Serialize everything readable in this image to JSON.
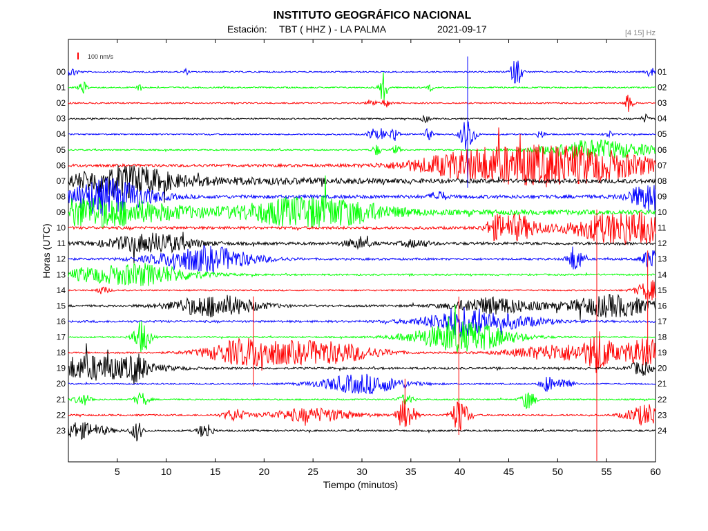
{
  "header": {
    "title": "INSTITUTO GEOGRÁFICO NACIONAL",
    "station_label": "Estación:",
    "station": "TBT ( HHZ ) - LA PALMA",
    "date": "2021-09-17",
    "filter": "[4 15] Hz"
  },
  "scale": {
    "label": "100 nm/s",
    "color": "#ff0000"
  },
  "chart_data": {
    "type": "line",
    "chart_kind": "helicorder",
    "xlabel": "Tiempo (minutos)",
    "ylabel": "Horas (UTC)",
    "xlim": [
      0,
      60
    ],
    "x_ticks": [
      5,
      10,
      15,
      20,
      25,
      30,
      35,
      40,
      45,
      50,
      55,
      60
    ],
    "grid": false,
    "legend": "none",
    "color_cycle": [
      "#0000ff",
      "#00ff00",
      "#ff0000",
      "#000000"
    ],
    "rows": [
      {
        "left": "00",
        "right": "01",
        "color": "#0000ff",
        "noise": 1.0,
        "events": [
          [
            0.5,
            6,
            0.4
          ],
          [
            12,
            4,
            0.2
          ],
          [
            45.8,
            20,
            0.4
          ],
          [
            59.5,
            8,
            0.3
          ]
        ]
      },
      {
        "left": "01",
        "right": "02",
        "color": "#00ff00",
        "noise": 1.0,
        "events": [
          [
            1.5,
            8,
            0.3
          ],
          [
            7.2,
            6,
            0.2
          ],
          [
            32.2,
            22,
            0.3
          ],
          [
            37,
            5,
            0.2
          ]
        ]
      },
      {
        "left": "02",
        "right": "03",
        "color": "#ff0000",
        "noise": 1.0,
        "events": [
          [
            31,
            7,
            0.3
          ],
          [
            32.5,
            6,
            0.3
          ],
          [
            57.2,
            12,
            0.3
          ]
        ]
      },
      {
        "left": "03",
        "right": "04",
        "color": "#000000",
        "noise": 1.0,
        "events": [
          [
            36.5,
            5,
            0.3
          ],
          [
            59,
            6,
            0.3
          ]
        ]
      },
      {
        "left": "04",
        "right": "05",
        "color": "#0000ff",
        "noise": 1.0,
        "events": [
          [
            31,
            9,
            0.3
          ],
          [
            32,
            9,
            0.3
          ],
          [
            33.3,
            12,
            0.3
          ],
          [
            36.8,
            8,
            0.3
          ],
          [
            40.8,
            24,
            0.5
          ],
          [
            48.3,
            6,
            0.3
          ],
          [
            55.2,
            5,
            0.3
          ]
        ]
      },
      {
        "left": "05",
        "right": "06",
        "color": "#00ff00",
        "noise": 1.0,
        "events": [
          [
            31.5,
            8,
            0.3
          ],
          [
            33.5,
            6,
            0.3
          ],
          [
            54,
            14,
            4.0
          ]
        ]
      },
      {
        "left": "06",
        "right": "07",
        "color": "#ff0000",
        "noise": 2.0,
        "events": [
          [
            43,
            24,
            5.0
          ],
          [
            51.5,
            22,
            4.0
          ],
          [
            57.5,
            8,
            3.0
          ]
        ]
      },
      {
        "left": "07",
        "right": "08",
        "color": "#000000",
        "noise": 3.0,
        "events": [
          [
            5.5,
            20,
            3.5
          ],
          [
            15,
            3,
            10
          ]
        ]
      },
      {
        "left": "08",
        "right": "09",
        "color": "#0000ff",
        "noise": 2.5,
        "events": [
          [
            4,
            26,
            3.0
          ],
          [
            37.8,
            8,
            0.5
          ],
          [
            59.5,
            20,
            1.5
          ]
        ]
      },
      {
        "left": "09",
        "right": "10",
        "color": "#00ff00",
        "noise": 3.5,
        "events": [
          [
            2.5,
            20,
            6.0
          ],
          [
            25,
            22,
            5.0
          ]
        ]
      },
      {
        "left": "10",
        "right": "11",
        "color": "#ff0000",
        "noise": 2.0,
        "events": [
          [
            43.6,
            12,
            0.6
          ],
          [
            45.8,
            18,
            1.5
          ],
          [
            57.2,
            24,
            4.0
          ]
        ]
      },
      {
        "left": "11",
        "right": "12",
        "color": "#000000",
        "noise": 2.0,
        "events": [
          [
            8.5,
            14,
            3.0
          ],
          [
            29.5,
            6,
            1.0
          ],
          [
            35.5,
            5,
            1.0
          ]
        ]
      },
      {
        "left": "12",
        "right": "13",
        "color": "#0000ff",
        "noise": 1.5,
        "events": [
          [
            14,
            18,
            3.5
          ],
          [
            51.8,
            20,
            0.5
          ],
          [
            59.5,
            14,
            0.6
          ]
        ]
      },
      {
        "left": "13",
        "right": "14",
        "color": "#00ff00",
        "noise": 1.2,
        "events": [
          [
            7,
            16,
            4.0
          ],
          [
            1.5,
            4,
            1.0
          ]
        ]
      },
      {
        "left": "14",
        "right": "15",
        "color": "#ff0000",
        "noise": 1.0,
        "events": [
          [
            3.5,
            5,
            0.5
          ],
          [
            59.5,
            14,
            1.0
          ]
        ]
      },
      {
        "left": "15",
        "right": "16",
        "color": "#000000",
        "noise": 1.5,
        "events": [
          [
            15,
            16,
            3.0
          ],
          [
            43.5,
            12,
            3.0
          ],
          [
            55.5,
            16,
            3.0
          ]
        ]
      },
      {
        "left": "16",
        "right": "17",
        "color": "#0000ff",
        "noise": 1.5,
        "events": [
          [
            42,
            14,
            4.0
          ],
          [
            40,
            10,
            1.5
          ]
        ]
      },
      {
        "left": "17",
        "right": "18",
        "color": "#00ff00",
        "noise": 1.0,
        "events": [
          [
            7.5,
            24,
            0.6
          ],
          [
            40.3,
            22,
            3.5
          ]
        ]
      },
      {
        "left": "18",
        "right": "19",
        "color": "#ff0000",
        "noise": 1.2,
        "events": [
          [
            18.5,
            20,
            3.0
          ],
          [
            26.5,
            16,
            3.5
          ],
          [
            50.5,
            12,
            3.5
          ],
          [
            54.2,
            24,
            0.8
          ],
          [
            59.3,
            20,
            2.0
          ]
        ]
      },
      {
        "left": "19",
        "right": "20",
        "color": "#000000",
        "noise": 1.5,
        "events": [
          [
            2.5,
            18,
            4.0
          ],
          [
            7,
            14,
            0.6
          ],
          [
            58.5,
            10,
            0.8
          ]
        ]
      },
      {
        "left": "20",
        "right": "21",
        "color": "#0000ff",
        "noise": 1.0,
        "events": [
          [
            30,
            14,
            3.0
          ],
          [
            49,
            12,
            0.5
          ],
          [
            50.8,
            10,
            0.5
          ]
        ]
      },
      {
        "left": "21",
        "right": "22",
        "color": "#00ff00",
        "noise": 1.0,
        "events": [
          [
            1.5,
            8,
            0.6
          ],
          [
            7.5,
            10,
            0.5
          ],
          [
            34.5,
            8,
            0.5
          ],
          [
            47,
            14,
            0.5
          ]
        ]
      },
      {
        "left": "22",
        "right": "23",
        "color": "#ff0000",
        "noise": 1.2,
        "events": [
          [
            17,
            8,
            0.8
          ],
          [
            25,
            10,
            3.0
          ],
          [
            34.5,
            24,
            0.6
          ],
          [
            40,
            24,
            0.6
          ],
          [
            59.3,
            16,
            1.5
          ]
        ]
      },
      {
        "left": "23",
        "right": "24",
        "color": "#000000",
        "noise": 1.2,
        "events": [
          [
            1,
            12,
            2.0
          ],
          [
            7,
            14,
            0.4
          ],
          [
            14,
            12,
            0.5
          ]
        ]
      }
    ],
    "vertical_spikes": [
      {
        "minute": 39.9,
        "row": 21.5,
        "up": 160,
        "down": 40,
        "color": "#ff0000"
      },
      {
        "minute": 54.0,
        "row": 17.7,
        "up": 200,
        "down": 260,
        "color": "#ff0000"
      },
      {
        "minute": 40.8,
        "row": 3.0,
        "up": 90,
        "down": 100,
        "color": "#0000ff"
      },
      {
        "minute": 18.9,
        "row": 17.5,
        "up": 70,
        "down": 60,
        "color": "#ff0000"
      },
      {
        "minute": 59.2,
        "row": 15.0,
        "up": 80,
        "down": 70,
        "color": "#ff0000"
      },
      {
        "minute": 34.4,
        "row": 21.0,
        "up": 30,
        "down": 40,
        "color": "#ff0000"
      }
    ]
  }
}
